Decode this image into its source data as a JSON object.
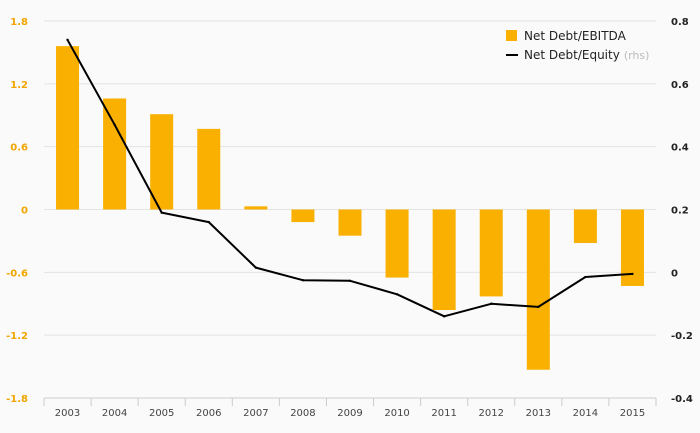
{
  "chart_data": {
    "type": "bar",
    "categories": [
      "2003",
      "2004",
      "2005",
      "2006",
      "2007",
      "2008",
      "2009",
      "2010",
      "2011",
      "2012",
      "2013",
      "2014",
      "2015"
    ],
    "series": [
      {
        "name": "Net Debt/EBITDA",
        "type": "bar",
        "axis": "left",
        "color": "#f9b000",
        "values": [
          1.56,
          1.06,
          0.91,
          0.77,
          0.03,
          -0.12,
          -0.25,
          -0.65,
          -0.96,
          -0.83,
          -1.53,
          -0.32,
          -0.73
        ]
      },
      {
        "name": "Net Debt/Equity",
        "note": "(rhs)",
        "type": "line",
        "axis": "right",
        "color": "#000000",
        "values": [
          0.74,
          0.47,
          0.19,
          0.16,
          0.015,
          -0.025,
          -0.027,
          -0.07,
          -0.14,
          -0.1,
          -0.11,
          -0.015,
          -0.005
        ]
      }
    ],
    "y_left": {
      "ticks": [
        "1.8",
        "1.2",
        "0.6",
        "0",
        "-0.6",
        "-1.2",
        "-1.8"
      ],
      "range": [
        -1.8,
        1.8
      ]
    },
    "y_right": {
      "ticks": [
        "0.8",
        "0.6",
        "0.4",
        "0.2",
        "0",
        "-0.2",
        "-0.4"
      ],
      "range": [
        -0.4,
        0.8
      ]
    },
    "grid": true,
    "legend_position": "top-right"
  }
}
